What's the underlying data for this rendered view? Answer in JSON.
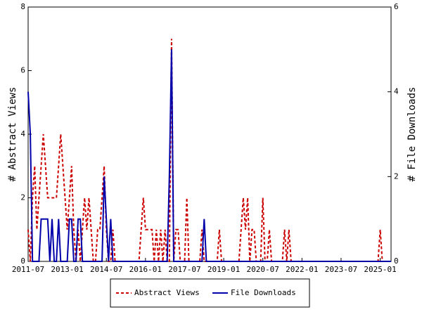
{
  "chart_data": {
    "type": "line",
    "x": [
      "2011-07",
      "2011-08",
      "2011-09",
      "2011-10",
      "2011-11",
      "2011-12",
      "2012-01",
      "2012-02",
      "2012-03",
      "2012-04",
      "2012-05",
      "2012-06",
      "2012-07",
      "2012-08",
      "2012-09",
      "2012-10",
      "2012-11",
      "2012-12",
      "2013-01",
      "2013-02",
      "2013-03",
      "2013-04",
      "2013-05",
      "2013-06",
      "2013-07",
      "2013-08",
      "2013-09",
      "2013-10",
      "2013-11",
      "2013-12",
      "2014-01",
      "2014-02",
      "2014-03",
      "2014-04",
      "2014-05",
      "2014-06",
      "2014-07",
      "2014-08",
      "2014-09",
      "2014-10",
      "2014-11",
      "2014-12",
      "2015-01",
      "2015-02",
      "2015-03",
      "2015-04",
      "2015-05",
      "2015-06",
      "2015-07",
      "2015-08",
      "2015-09",
      "2015-10",
      "2015-11",
      "2015-12",
      "2016-01",
      "2016-02",
      "2016-03",
      "2016-04",
      "2016-05",
      "2016-06",
      "2016-07",
      "2016-08",
      "2016-09",
      "2016-10",
      "2016-11",
      "2016-12",
      "2017-01",
      "2017-02",
      "2017-03",
      "2017-04",
      "2017-05",
      "2017-06",
      "2017-07",
      "2017-08",
      "2017-09",
      "2017-10",
      "2017-11",
      "2017-12",
      "2018-01",
      "2018-02",
      "2018-03",
      "2018-04",
      "2018-05",
      "2018-06",
      "2018-07",
      "2018-08",
      "2018-09",
      "2018-10",
      "2018-11",
      "2018-12",
      "2019-01",
      "2019-02",
      "2019-03",
      "2019-04",
      "2019-05",
      "2019-06",
      "2019-07",
      "2019-08",
      "2019-09",
      "2019-10",
      "2019-11",
      "2019-12",
      "2020-01",
      "2020-02",
      "2020-03",
      "2020-04",
      "2020-05",
      "2020-06",
      "2020-07",
      "2020-08",
      "2020-09",
      "2020-10",
      "2020-11",
      "2020-12",
      "2021-01",
      "2021-02",
      "2021-03",
      "2021-04",
      "2021-05",
      "2021-06",
      "2021-07",
      "2021-08",
      "2021-09",
      "2021-10",
      "2021-11",
      "2021-12",
      "2022-01",
      "2022-02",
      "2022-03",
      "2022-04",
      "2022-05",
      "2022-06",
      "2022-07",
      "2022-08",
      "2022-09",
      "2022-10",
      "2022-11",
      "2022-12",
      "2023-01",
      "2023-02",
      "2023-03",
      "2023-04",
      "2023-05",
      "2023-06",
      "2023-07",
      "2023-08",
      "2023-09",
      "2023-10",
      "2023-11",
      "2023-12",
      "2024-01",
      "2024-02",
      "2024-03",
      "2024-04",
      "2024-05",
      "2024-06",
      "2024-07",
      "2024-08",
      "2024-09",
      "2024-10",
      "2024-11",
      "2024-12",
      "2025-01",
      "2025-02",
      "2025-03",
      "2025-04",
      "2025-05",
      "2025-06"
    ],
    "series": [
      {
        "name": "Abstract Views",
        "color": "#cc0000",
        "dash": true,
        "values": [
          1,
          0,
          2,
          3,
          1,
          2,
          3,
          4,
          3,
          2,
          2,
          2,
          2,
          2,
          3,
          4,
          3,
          2,
          1,
          2,
          3,
          1,
          0,
          1,
          0,
          1,
          2,
          1,
          2,
          1,
          0,
          0,
          1,
          1,
          2,
          3,
          1,
          0,
          0,
          1,
          0,
          0,
          0,
          0,
          0,
          0,
          0,
          0,
          0,
          0,
          0,
          0,
          1,
          2,
          1,
          1,
          1,
          1,
          0,
          1,
          0,
          1,
          0,
          1,
          0,
          0,
          7,
          0,
          1,
          1,
          0,
          0,
          0,
          2,
          0,
          0,
          0,
          0,
          0,
          0,
          1,
          0,
          0,
          0,
          0,
          0,
          0,
          0,
          1,
          0,
          0,
          0,
          0,
          0,
          0,
          0,
          0,
          0,
          1,
          2,
          1,
          2,
          0,
          1,
          1,
          0,
          0,
          0,
          2,
          0,
          0,
          1,
          0,
          0,
          0,
          0,
          0,
          0,
          1,
          0,
          1,
          0,
          0,
          0,
          0,
          0,
          0,
          0,
          0,
          0,
          0,
          0,
          0,
          0,
          0,
          0,
          0,
          0,
          0,
          0,
          0,
          0,
          0,
          0,
          0,
          0,
          0,
          0,
          0,
          0,
          0,
          0,
          0,
          0,
          0,
          0,
          0,
          0,
          0,
          0,
          0,
          0,
          1,
          0,
          0,
          0,
          0,
          0
        ]
      },
      {
        "name": "File Downloads",
        "color": "#0000aa",
        "dash": false,
        "axis": "y2",
        "values": [
          4,
          3,
          0,
          0,
          0,
          0,
          1,
          1,
          1,
          1,
          0,
          1,
          0,
          0,
          1,
          0,
          0,
          0,
          0,
          1,
          1,
          0,
          0,
          1,
          1,
          0,
          0,
          0,
          0,
          0,
          0,
          0,
          0,
          0,
          0,
          2,
          1,
          0,
          1,
          0,
          0,
          0,
          0,
          0,
          0,
          0,
          0,
          0,
          0,
          0,
          0,
          0,
          0,
          0,
          0,
          0,
          0,
          0,
          0,
          0,
          0,
          0,
          0,
          0,
          0,
          2,
          5,
          0,
          0,
          0,
          0,
          0,
          0,
          0,
          0,
          0,
          0,
          0,
          0,
          0,
          0,
          1,
          0,
          0,
          0,
          0,
          0,
          0,
          0,
          0,
          0,
          0,
          0,
          0,
          0,
          0,
          0,
          0,
          0,
          0,
          0,
          0,
          0,
          0,
          0,
          0,
          0,
          0,
          0,
          0,
          0,
          0,
          0,
          0,
          0,
          0,
          0,
          0,
          0,
          0,
          0,
          0,
          0,
          0,
          0,
          0,
          0,
          0,
          0,
          0,
          0,
          0,
          0,
          0,
          0,
          0,
          0,
          0,
          0,
          0,
          0,
          0,
          0,
          0,
          0,
          0,
          0,
          0,
          0,
          0,
          0,
          0,
          0,
          0,
          0,
          0,
          0,
          0,
          0,
          0,
          0,
          0,
          0,
          0,
          0,
          0,
          0,
          0
        ]
      }
    ],
    "y_label": "# Abstract Views",
    "y2_label": "# File Downloads",
    "xlim": [
      "2011-07",
      "2025-06"
    ],
    "xticks": [
      "2011-07",
      "2013-01",
      "2014-07",
      "2016-01",
      "2017-07",
      "2019-01",
      "2020-07",
      "2022-01",
      "2023-07",
      "2025-01"
    ],
    "ylim": [
      0,
      8
    ],
    "yticks": [
      0,
      2,
      4,
      6,
      8
    ],
    "y2lim": [
      0,
      6
    ],
    "y2ticks": [
      0,
      2,
      4,
      6
    ],
    "legend": "bottom"
  }
}
